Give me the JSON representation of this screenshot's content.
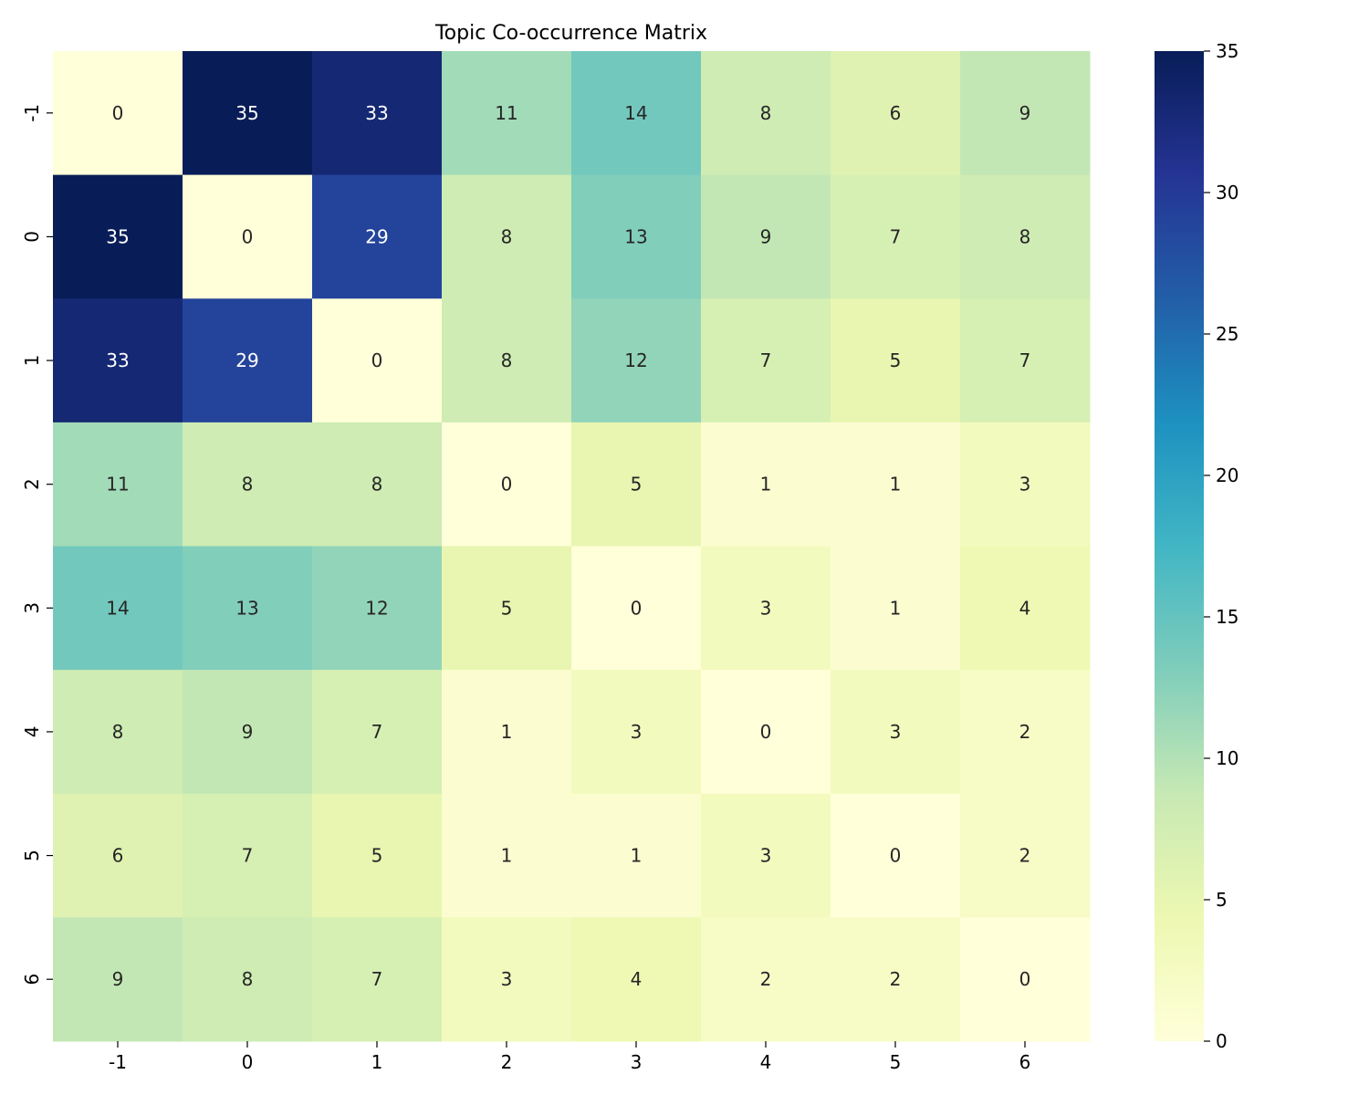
{
  "chart_data": {
    "type": "heatmap",
    "title": "Topic Co-occurrence Matrix",
    "xlabel": "",
    "ylabel": "",
    "x_categories": [
      "-1",
      "0",
      "1",
      "2",
      "3",
      "4",
      "5",
      "6"
    ],
    "y_categories": [
      "-1",
      "0",
      "1",
      "2",
      "3",
      "4",
      "5",
      "6"
    ],
    "values": [
      [
        0,
        35,
        33,
        11,
        14,
        8,
        6,
        9
      ],
      [
        35,
        0,
        29,
        8,
        13,
        9,
        7,
        8
      ],
      [
        33,
        29,
        0,
        8,
        12,
        7,
        5,
        7
      ],
      [
        11,
        8,
        8,
        0,
        5,
        1,
        1,
        3
      ],
      [
        14,
        13,
        12,
        5,
        0,
        3,
        1,
        4
      ],
      [
        8,
        9,
        7,
        1,
        3,
        0,
        3,
        2
      ],
      [
        6,
        7,
        5,
        1,
        1,
        3,
        0,
        2
      ],
      [
        9,
        8,
        7,
        3,
        4,
        2,
        2,
        0
      ]
    ],
    "colormap": "YlGnBu",
    "colormap_stops": [
      "#ffffd9",
      "#edf8b1",
      "#c7e9b4",
      "#7fcdbb",
      "#41b6c4",
      "#1d91c0",
      "#225ea8",
      "#253494",
      "#081d58"
    ],
    "vmin": 0,
    "vmax": 35,
    "colorbar_ticks": [
      0,
      5,
      10,
      15,
      20,
      25,
      30,
      35
    ],
    "annotations": true
  }
}
